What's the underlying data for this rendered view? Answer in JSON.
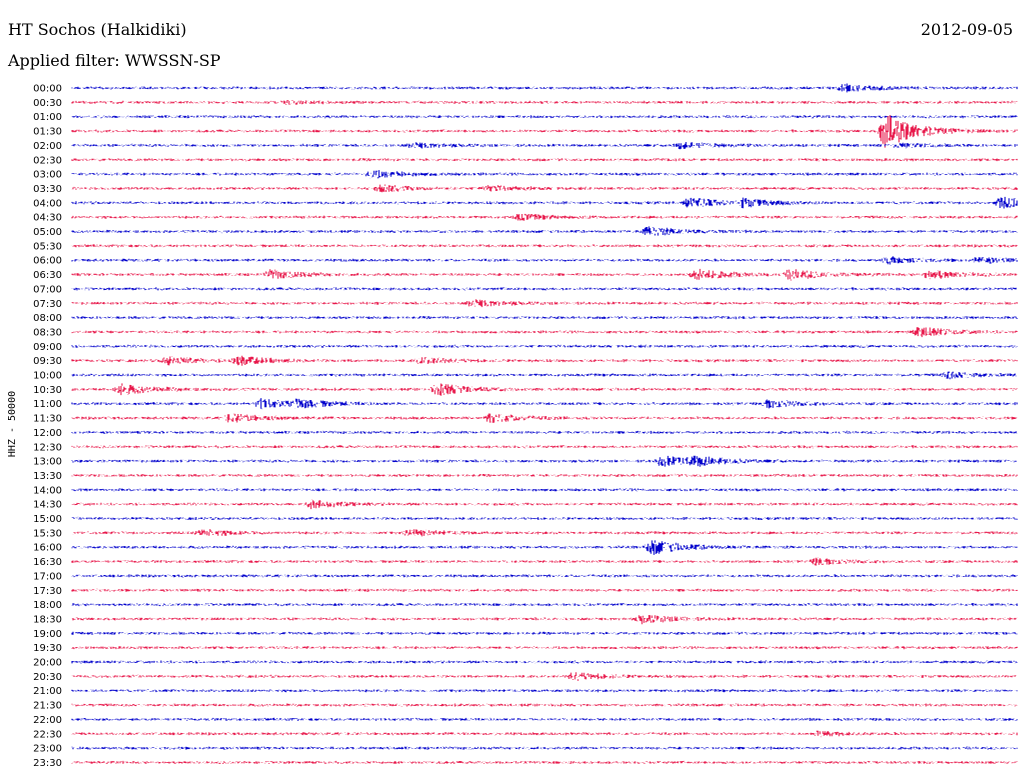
{
  "header": {
    "station": "HT Sochos (Halkidiki)",
    "date": "2012-09-05",
    "filter": "Applied filter: WWSSN-SP"
  },
  "chart_data": {
    "type": "line",
    "title": "HT Sochos (Halkidiki)",
    "subtitle": "Applied filter: WWSSN-SP",
    "ylabel": "HHZ - 50000",
    "row_labels": [
      "00:00",
      "00:30",
      "01:00",
      "01:30",
      "02:00",
      "02:30",
      "03:00",
      "03:30",
      "04:00",
      "04:30",
      "05:00",
      "05:30",
      "06:00",
      "06:30",
      "07:00",
      "07:30",
      "08:00",
      "08:30",
      "09:00",
      "09:30",
      "10:00",
      "10:30",
      "11:00",
      "11:30",
      "12:00",
      "12:30",
      "13:00",
      "13:30",
      "14:00",
      "14:30",
      "15:00",
      "15:30",
      "16:00",
      "16:30",
      "17:00",
      "17:30",
      "18:00",
      "18:30",
      "19:00",
      "19:30",
      "20:00",
      "20:30",
      "21:00",
      "21:30",
      "22:00",
      "22:30",
      "23:00",
      "23:30"
    ],
    "colors": [
      "#0000cc",
      "#e8174a"
    ],
    "row_minutes": 30,
    "events": [
      {
        "row": 0,
        "minute": 24.5,
        "amp": 0.5
      },
      {
        "row": 1,
        "minute": 6.8,
        "amp": 0.2
      },
      {
        "row": 3,
        "minute": 25.8,
        "amp": 2.5
      },
      {
        "row": 4,
        "minute": 10.8,
        "amp": 0.35
      },
      {
        "row": 4,
        "minute": 19.3,
        "amp": 0.45
      },
      {
        "row": 4,
        "minute": 26.2,
        "amp": 0.3
      },
      {
        "row": 6,
        "minute": 9.5,
        "amp": 0.55
      },
      {
        "row": 7,
        "minute": 9.8,
        "amp": 0.45
      },
      {
        "row": 7,
        "minute": 13.2,
        "amp": 0.35
      },
      {
        "row": 8,
        "minute": 19.6,
        "amp": 0.7
      },
      {
        "row": 8,
        "minute": 21.3,
        "amp": 0.5
      },
      {
        "row": 8,
        "minute": 29.5,
        "amp": 0.75
      },
      {
        "row": 9,
        "minute": 14.2,
        "amp": 0.4
      },
      {
        "row": 10,
        "minute": 18.3,
        "amp": 0.65
      },
      {
        "row": 12,
        "minute": 25.9,
        "amp": 0.45
      },
      {
        "row": 12,
        "minute": 28.8,
        "amp": 0.4
      },
      {
        "row": 13,
        "minute": 6.3,
        "amp": 0.6
      },
      {
        "row": 13,
        "minute": 19.8,
        "amp": 0.75
      },
      {
        "row": 13,
        "minute": 22.8,
        "amp": 0.7
      },
      {
        "row": 13,
        "minute": 27.2,
        "amp": 0.6
      },
      {
        "row": 15,
        "minute": 12.7,
        "amp": 0.5
      },
      {
        "row": 17,
        "minute": 26.9,
        "amp": 0.7
      },
      {
        "row": 19,
        "minute": 3.0,
        "amp": 0.6
      },
      {
        "row": 19,
        "minute": 5.3,
        "amp": 0.6
      },
      {
        "row": 19,
        "minute": 11.1,
        "amp": 0.45
      },
      {
        "row": 20,
        "minute": 27.8,
        "amp": 0.45
      },
      {
        "row": 21,
        "minute": 1.5,
        "amp": 0.75
      },
      {
        "row": 21,
        "minute": 11.6,
        "amp": 0.85
      },
      {
        "row": 22,
        "minute": 6.0,
        "amp": 0.65
      },
      {
        "row": 22,
        "minute": 7.2,
        "amp": 0.5
      },
      {
        "row": 22,
        "minute": 22.1,
        "amp": 0.5
      },
      {
        "row": 23,
        "minute": 5.0,
        "amp": 0.6
      },
      {
        "row": 23,
        "minute": 13.3,
        "amp": 0.65
      },
      {
        "row": 26,
        "minute": 18.7,
        "amp": 0.7
      },
      {
        "row": 26,
        "minute": 19.7,
        "amp": 0.55
      },
      {
        "row": 29,
        "minute": 7.6,
        "amp": 0.55
      },
      {
        "row": 31,
        "minute": 4.1,
        "amp": 0.5
      },
      {
        "row": 31,
        "minute": 10.7,
        "amp": 0.45
      },
      {
        "row": 32,
        "minute": 18.4,
        "amp": 1.0
      },
      {
        "row": 33,
        "minute": 23.6,
        "amp": 0.4
      },
      {
        "row": 37,
        "minute": 18.1,
        "amp": 0.6
      },
      {
        "row": 41,
        "minute": 15.9,
        "amp": 0.55
      },
      {
        "row": 45,
        "minute": 23.7,
        "amp": 0.3
      }
    ]
  }
}
